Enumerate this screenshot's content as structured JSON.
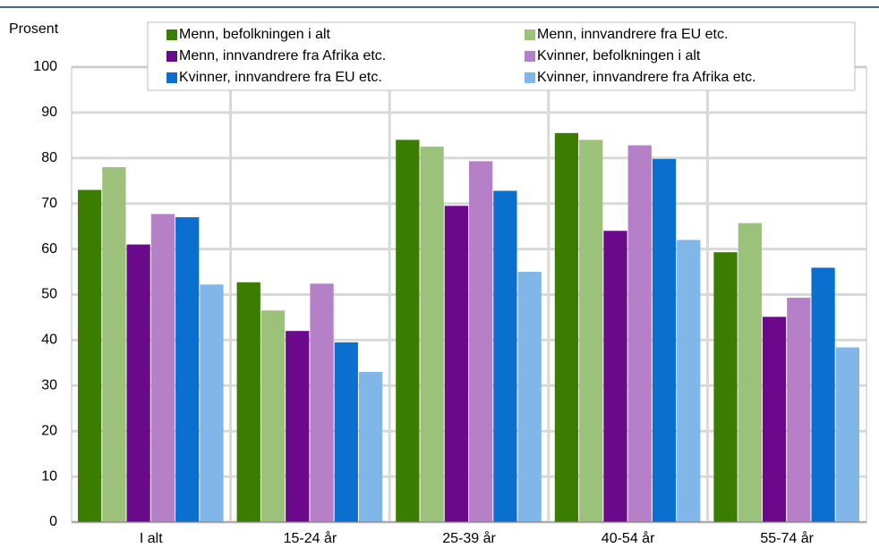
{
  "chart_data": {
    "type": "bar",
    "y_label": "Prosent",
    "categories": [
      "I alt",
      "15-24 år",
      "25-39 år",
      "40-54 år",
      "55-74 år"
    ],
    "series": [
      {
        "name": "Menn, befolkningen i alt",
        "color": "#3a7d00",
        "values": [
          73,
          52.7,
          84,
          85.5,
          59.3
        ]
      },
      {
        "name": "Menn, innvandrere fra EU etc.",
        "color": "#9cc17a",
        "values": [
          78,
          46.5,
          82.5,
          84,
          65.7
        ]
      },
      {
        "name": "Menn, innvandrere fra Afrika etc.",
        "color": "#6a0a8a",
        "values": [
          61,
          42,
          69.5,
          64,
          45.1
        ]
      },
      {
        "name": "Kvinner, befolkningen i alt",
        "color": "#b580c8",
        "values": [
          67.7,
          52.4,
          79.3,
          82.8,
          49.3
        ]
      },
      {
        "name": "Kvinner, innvandrere fra EU etc.",
        "color": "#0a6fcf",
        "values": [
          67,
          39.5,
          72.8,
          79.8,
          55.9
        ]
      },
      {
        "name": "Kvinner, innvandrere fra Afrika etc.",
        "color": "#80b6e8",
        "values": [
          52.2,
          33,
          55,
          62,
          38.4
        ]
      }
    ],
    "ylim": [
      0,
      100
    ],
    "yticks": [
      0,
      10,
      20,
      30,
      40,
      50,
      60,
      70,
      80,
      90,
      100
    ],
    "grid": true,
    "legend": "top"
  }
}
